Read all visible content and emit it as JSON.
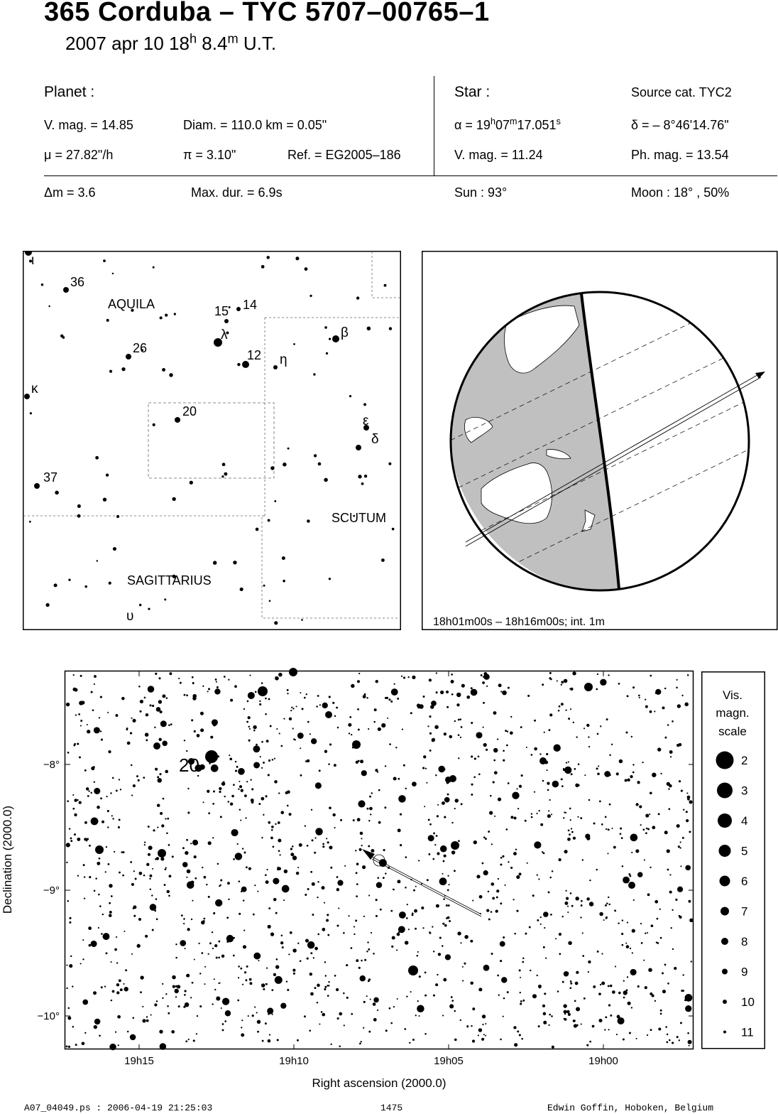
{
  "header": {
    "title": "365 Corduba  –  TYC 5707–00765–1",
    "date": "2007 apr 10  18",
    "hour_unit": "h",
    "minutes": " 8.4",
    "minute_unit": "m",
    "tz": " U.T."
  },
  "planet": {
    "heading": "Planet :",
    "vmag": "V. mag. = 14.85",
    "diam": "Diam. = 110.0 km = 0.05\"",
    "mu": "μ =  27.82\"/h",
    "pi": "π =  3.10\"",
    "ref": "Ref. = EG2005–186"
  },
  "star": {
    "heading": "Star :",
    "source": "Source cat.  TYC2",
    "ra_prefix": "α = 19",
    "ra_h": "h",
    "ra_min": "07",
    "ra_m": "m",
    "ra_sec": "17.051",
    "ra_s": "s",
    "dec": "δ = – 8°46'14.76\"",
    "vmag": "V. mag. = 11.24",
    "phmag": "Ph. mag. = 13.54"
  },
  "event": {
    "dm": "Δm = 3.6",
    "maxdur": "Max. dur. = 6.9s",
    "sun": "Sun :  93°",
    "moon": "Moon :  18° , 50%"
  },
  "finder": {
    "constellations": [
      "AQUILA",
      "SCUTUM",
      "SAGITTARIUS"
    ],
    "labels": [
      "36",
      "15",
      "14",
      "26",
      "12",
      "20",
      "37"
    ],
    "greek": [
      "ι",
      "λ",
      "η",
      "β",
      "κ",
      "ε",
      "δ",
      "υ"
    ]
  },
  "globe": {
    "caption": "18h01m00s – 18h16m00s; int.  1m"
  },
  "chart_data": {
    "type": "scatter",
    "xlabel": "Right ascension (2000.0)",
    "ylabel": "Declination (2000.0)",
    "x_ticks": [
      "19h15",
      "19h10",
      "19h05",
      "19h00"
    ],
    "y_ticks": [
      "−8°",
      "−9°",
      "−10°"
    ],
    "star_label": "20",
    "legend_title": [
      "Vis.",
      "magn.",
      "scale"
    ],
    "legend_values": [
      "2",
      "3",
      "4",
      "5",
      "6",
      "7",
      "8",
      "9",
      "10",
      "11"
    ]
  },
  "footer": {
    "file": "A07_04049.ps : 2006-04-19 21:25:03",
    "number": "1475",
    "author": "Edwin Goffin, Hoboken, Belgium"
  }
}
